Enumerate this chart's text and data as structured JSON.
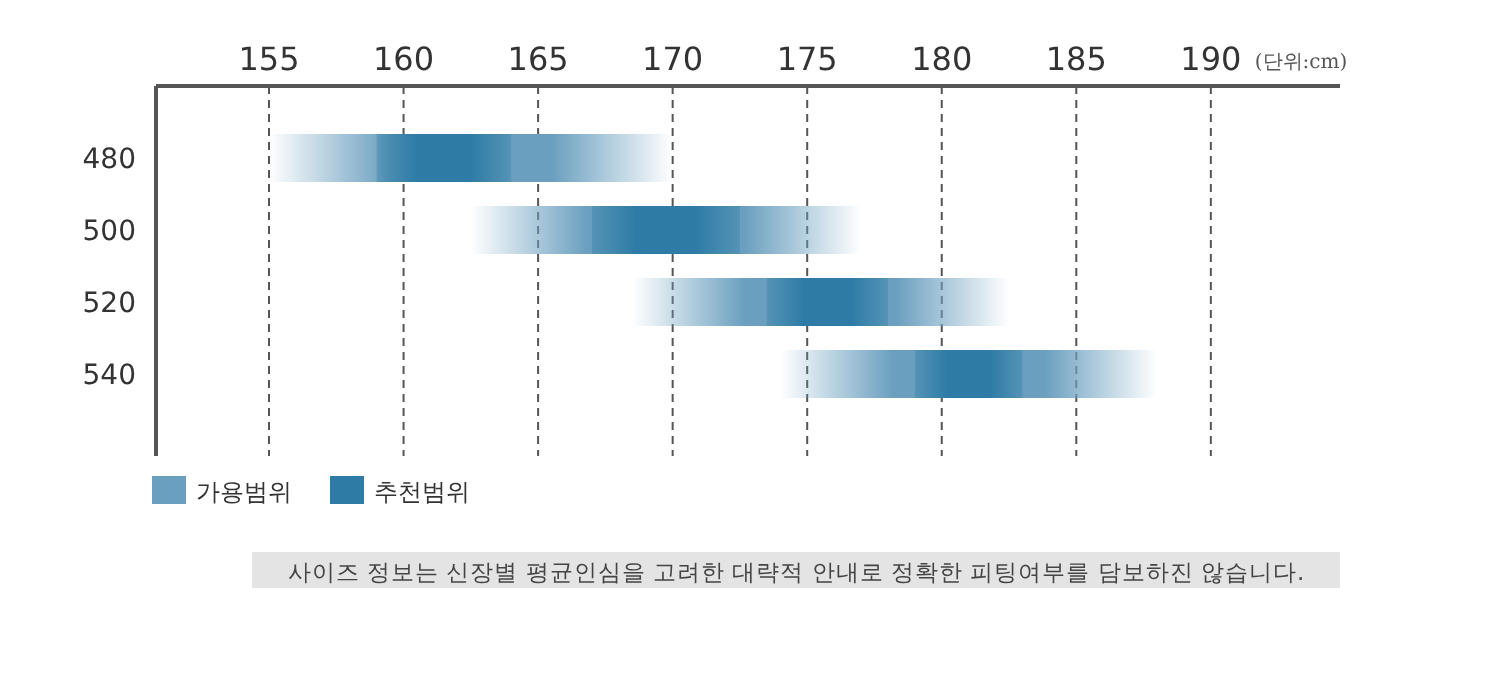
{
  "chart_data": {
    "type": "bar",
    "orientation": "horizontal",
    "categories": [
      "480",
      "500",
      "520",
      "540"
    ],
    "series": [
      {
        "name": "가용범위",
        "color": "#6a9fbf",
        "base": [
          155,
          162.5,
          168.5,
          174
        ],
        "values": [
          15,
          14.5,
          14,
          14
        ]
      },
      {
        "name": "추천범위",
        "color": "#2e7ca6",
        "base": [
          159,
          167,
          173.5,
          179
        ],
        "values": [
          5,
          5.5,
          4.5,
          4
        ]
      }
    ],
    "xlim": [
      150.8,
      194.8
    ],
    "xticks": [
      155,
      160,
      165,
      170,
      175,
      180,
      185,
      190
    ],
    "xlabel": "(단위:cm)",
    "grid": "x",
    "legend": "bottom left",
    "annotations": [
      "사이즈 정보는 신장별 평균인심을 고려한 대략적 안내로 정확한 피팅여부를 담보하진 않습니다."
    ]
  }
}
